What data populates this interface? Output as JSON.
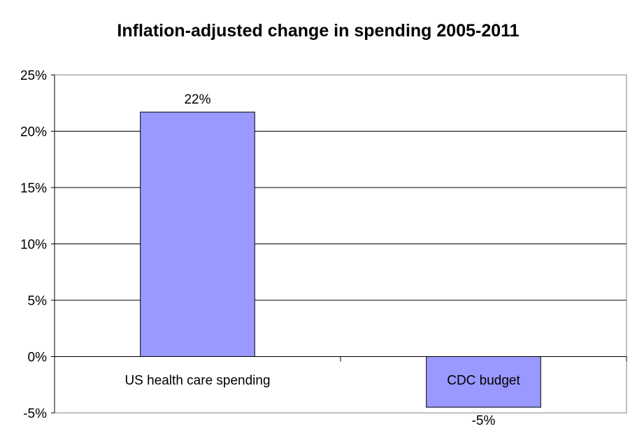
{
  "chart_data": {
    "type": "bar",
    "title": "Inflation-adjusted change in spending 2005-2011",
    "categories": [
      "US health care spending",
      "CDC budget"
    ],
    "values": [
      21.7,
      -4.5
    ],
    "data_labels": [
      "22%",
      "-5%"
    ],
    "ylim": [
      -5,
      25
    ],
    "yticks": [
      25,
      20,
      15,
      10,
      5,
      0,
      -5
    ],
    "ytick_labels": [
      "25%",
      "20%",
      "15%",
      "10%",
      "5%",
      "0%",
      "-5%"
    ],
    "xlabel": "",
    "ylabel": "",
    "grid": true,
    "legend": "none",
    "colors": {
      "bar_fill": "#9999ff",
      "bar_stroke": "#000000",
      "grid": "#000000",
      "plot_border": "#808080"
    }
  }
}
